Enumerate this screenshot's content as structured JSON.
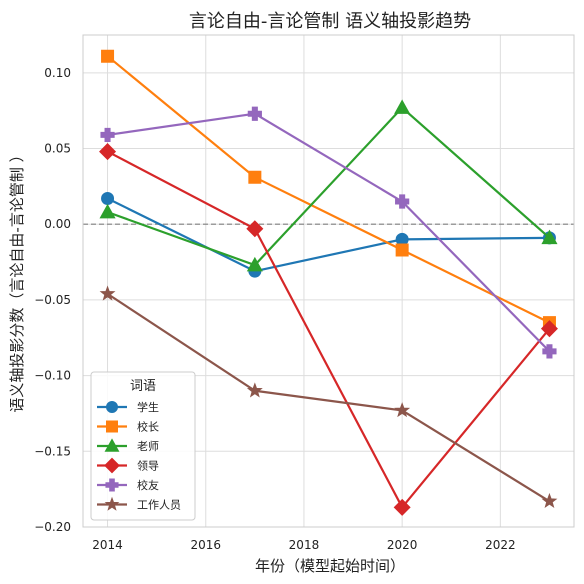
{
  "chart_data": {
    "type": "line",
    "title": "言论自由-言论管制 语义轴投影趋势",
    "xlabel": "年份（模型起始时间）",
    "ylabel": "语义轴投影分数（言论自由-言论管制 ）",
    "xlim": [
      2013.5,
      2023.5
    ],
    "ylim": [
      -0.2,
      0.125
    ],
    "x": [
      2014,
      2017,
      2020,
      2023
    ],
    "xticks": [
      2014,
      2016,
      2018,
      2020,
      2022
    ],
    "yticks": [
      0.1,
      0.05,
      0.0,
      -0.05,
      -0.1,
      -0.15,
      -0.2
    ],
    "ytick_labels": [
      "0.10",
      "0.05",
      "0.00",
      "−0.05",
      "−0.10",
      "−0.15",
      "−0.20"
    ],
    "grid": true,
    "zero_line": {
      "y": 0,
      "style": "dashed",
      "color": "#808080"
    },
    "legend": {
      "title": "词语",
      "position": "lower-left"
    },
    "series": [
      {
        "name": "学生",
        "color": "#1f77b4",
        "marker": "circle",
        "values": [
          0.017,
          -0.031,
          -0.01,
          -0.009
        ]
      },
      {
        "name": "校长",
        "color": "#ff7f0e",
        "marker": "square",
        "values": [
          0.111,
          0.031,
          -0.017,
          -0.065
        ]
      },
      {
        "name": "老师",
        "color": "#2ca02c",
        "marker": "triangle",
        "values": [
          0.008,
          -0.027,
          0.077,
          -0.009
        ]
      },
      {
        "name": "领导",
        "color": "#d62728",
        "marker": "diamond",
        "values": [
          0.048,
          -0.003,
          -0.187,
          -0.069
        ]
      },
      {
        "name": "校友",
        "color": "#9467bd",
        "marker": "plus",
        "values": [
          0.059,
          0.073,
          0.015,
          -0.084
        ]
      },
      {
        "name": "工作人员",
        "color": "#8c564b",
        "marker": "star",
        "values": [
          -0.046,
          -0.11,
          -0.123,
          -0.183
        ]
      }
    ]
  }
}
